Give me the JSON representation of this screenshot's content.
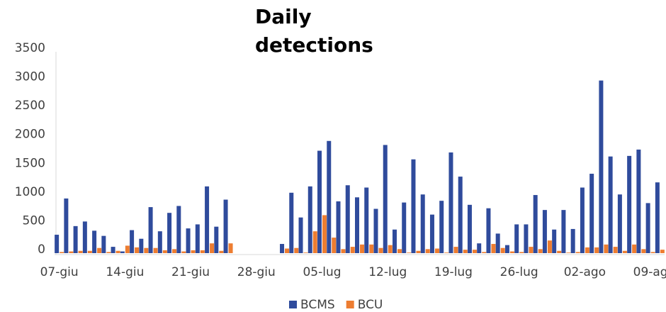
{
  "chart_data": {
    "type": "bar",
    "title": "Daily detections",
    "categories": [
      "07-giu",
      null,
      null,
      null,
      null,
      null,
      null,
      "14-giu",
      null,
      null,
      null,
      null,
      null,
      null,
      "21-giu",
      null,
      null,
      null,
      null,
      null,
      null,
      "28-giu",
      null,
      null,
      null,
      null,
      null,
      null,
      "05-lug",
      null,
      null,
      null,
      null,
      null,
      null,
      "12-lug",
      null,
      null,
      null,
      null,
      null,
      null,
      "19-lug",
      null,
      null,
      null,
      null,
      null,
      null,
      "26-lug",
      null,
      null,
      null,
      null,
      null,
      null,
      "02-ago",
      null,
      null,
      null,
      null,
      null,
      null,
      "09-ag",
      null
    ],
    "series": [
      {
        "name": "BCMS",
        "color": "#2f4b9c",
        "values": [
          320,
          950,
          470,
          550,
          390,
          300,
          110,
          30,
          400,
          250,
          800,
          380,
          700,
          820,
          430,
          500,
          1160,
          460,
          930,
          null,
          null,
          null,
          null,
          null,
          160,
          1050,
          620,
          1160,
          1780,
          1950,
          900,
          1180,
          970,
          1140,
          770,
          1880,
          410,
          880,
          1630,
          1020,
          670,
          910,
          1750,
          1330,
          840,
          170,
          780,
          340,
          140,
          500,
          500,
          1010,
          750,
          410,
          750,
          420,
          1140,
          1380,
          3000,
          1680,
          1020,
          1690,
          1800,
          870,
          1230
        ]
      },
      {
        "name": "BCU",
        "color": "#ed7d31",
        "values": [
          20,
          30,
          40,
          40,
          90,
          20,
          40,
          130,
          100,
          90,
          90,
          50,
          70,
          30,
          50,
          50,
          170,
          40,
          170,
          null,
          null,
          null,
          null,
          null,
          80,
          90,
          10,
          380,
          660,
          270,
          70,
          110,
          150,
          150,
          90,
          140,
          70,
          10,
          40,
          70,
          80,
          10,
          110,
          60,
          60,
          20,
          160,
          90,
          30,
          20,
          110,
          70,
          220,
          40,
          10,
          20,
          100,
          100,
          150,
          110,
          40,
          150,
          70,
          20,
          60
        ]
      }
    ],
    "ylim": [
      0,
      3500
    ],
    "yticks": [
      0,
      500,
      1000,
      1500,
      2000,
      2500,
      3000,
      3500
    ],
    "legend": "bottom"
  }
}
